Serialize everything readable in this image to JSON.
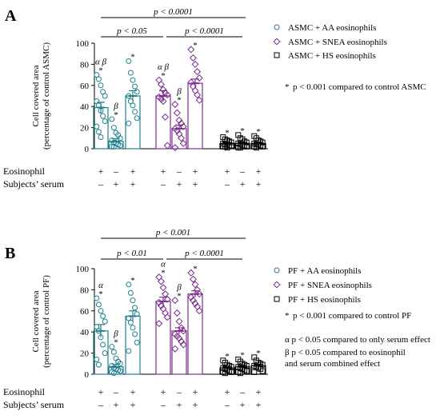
{
  "figure": {
    "colors": {
      "aa": "#1f7f8c",
      "snea": "#7b2d8e",
      "hs": "#000000"
    }
  },
  "chart_data": [
    {
      "panel": "A",
      "type": "bar",
      "ylabel_line1": "Cell covered area",
      "ylabel_line2": "(percentage of control ASMC)",
      "ylim": [
        0,
        100
      ],
      "yticks": [
        0,
        20,
        40,
        60,
        80,
        100
      ],
      "ytick_labels": [
        "0",
        "20",
        "40",
        "60",
        "80",
        "100"
      ],
      "grid": false,
      "legend_position": "right",
      "legend": [
        {
          "label": "ASMC + AA eosinophils",
          "marker": "circle",
          "color_key": "aa"
        },
        {
          "label": "ASMC + SNEA eosinophils",
          "marker": "diamond",
          "color_key": "snea"
        },
        {
          "label": "ASMC + HS eosinophils",
          "marker": "square",
          "color_key": "hs"
        }
      ],
      "footnote": "p < 0.001 compared to control ASMC",
      "condition_rows": [
        {
          "label": "Eosinophil",
          "values": [
            "+",
            "–",
            "+",
            "+",
            "–",
            "+",
            "+",
            "–",
            "+"
          ]
        },
        {
          "label": "Subjects’ serum",
          "values": [
            "–",
            "+",
            "+",
            "–",
            "+",
            "+",
            "–",
            "+",
            "+"
          ]
        }
      ],
      "series": [
        {
          "group": "AA",
          "color_key": "aa",
          "marker": "circle",
          "bars": [
            {
              "mean": 39,
              "sem": 5,
              "star": "*",
              "greek": "α β",
              "points": [
                70,
                66,
                60,
                54,
                50,
                45,
                41,
                36,
                31,
                26,
                21,
                16,
                11
              ]
            },
            {
              "mean": 7,
              "sem": 2.5,
              "star": "*",
              "greek": "β",
              "points": [
                28,
                20,
                15,
                13,
                10,
                8,
                6,
                5,
                4,
                3,
                2,
                2
              ]
            },
            {
              "mean": 50,
              "sem": 5,
              "star": "*",
              "greek": "",
              "points": [
                83,
                72,
                65,
                59,
                54,
                50,
                45,
                41,
                35,
                29,
                24
              ]
            }
          ]
        },
        {
          "group": "SNEA",
          "color_key": "snea",
          "marker": "diamond",
          "bars": [
            {
              "mean": 50,
              "sem": 5,
              "star": "*",
              "greek": "α β",
              "points": [
                65,
                61,
                56,
                53,
                51,
                49,
                47,
                45,
                30,
                3
              ]
            },
            {
              "mean": 19,
              "sem": 3.5,
              "star": "*",
              "greek": "β",
              "points": [
                42,
                34,
                27,
                24,
                21,
                19,
                17,
                14,
                10,
                5,
                1
              ]
            },
            {
              "mean": 62,
              "sem": 4,
              "star": "*",
              "greek": "",
              "points": [
                94,
                86,
                80,
                73,
                67,
                63,
                59,
                55,
                51,
                46
              ]
            }
          ]
        },
        {
          "group": "HS",
          "color_key": "hs",
          "marker": "square",
          "bars": [
            {
              "mean": 5,
              "sem": 1,
              "star": "*",
              "greek": "",
              "points": [
                11,
                9,
                8,
                7,
                6,
                5,
                4,
                4,
                3,
                3,
                2,
                2,
                1
              ]
            },
            {
              "mean": 5,
              "sem": 1,
              "star": "*",
              "greek": "",
              "points": [
                13,
                10,
                9,
                7,
                6,
                5,
                4,
                3,
                3,
                2,
                1,
                1
              ]
            },
            {
              "mean": 5,
              "sem": 1,
              "star": "*",
              "greek": "",
              "points": [
                12,
                10,
                8,
                7,
                6,
                5,
                4,
                4,
                3,
                2,
                2,
                1
              ]
            }
          ]
        }
      ],
      "significance": [
        {
          "label": "p < 0.0001",
          "from": 0,
          "to": 7
        },
        {
          "label": "p < 0.05",
          "from": 0,
          "to": 3
        },
        {
          "label": "p < 0.0001",
          "from": 3,
          "to": 7
        }
      ]
    },
    {
      "panel": "B",
      "type": "bar",
      "ylabel_line1": "Cell covered area",
      "ylabel_line2": "(percentage of control PF)",
      "ylim": [
        0,
        100
      ],
      "yticks": [
        0,
        20,
        40,
        60,
        80,
        100
      ],
      "ytick_labels": [
        "0",
        "20",
        "40",
        "60",
        "80",
        "100"
      ],
      "grid": false,
      "legend_position": "right",
      "legend": [
        {
          "label": "PF + AA eosinophils",
          "marker": "circle",
          "color_key": "aa"
        },
        {
          "label": "PF + SNEA eosinophils",
          "marker": "diamond",
          "color_key": "snea"
        },
        {
          "label": "PF + HS eosinophils",
          "marker": "square",
          "color_key": "hs"
        }
      ],
      "footnote": "p < 0.001 compared to control PF",
      "notes": [
        "α p < 0.05 compared to only serum effect",
        "β p < 0.05 compared to eosinophil",
        "and serum combined effect"
      ],
      "condition_rows": [
        {
          "label": "Eosinophil",
          "values": [
            "+",
            "–",
            "+",
            "+",
            "–",
            "+",
            "+",
            "–",
            "+"
          ]
        },
        {
          "label": "Subjects’ serum",
          "values": [
            "–",
            "+",
            "+",
            "–",
            "+",
            "+",
            "–",
            "+",
            "+"
          ]
        }
      ],
      "series": [
        {
          "group": "AA",
          "color_key": "aa",
          "marker": "circle",
          "bars": [
            {
              "mean": 41,
              "sem": 6,
              "star": "*",
              "greek": "α",
              "points": [
                72,
                66,
                60,
                55,
                50,
                45,
                41,
                35,
                28,
                20,
                14,
                9
              ]
            },
            {
              "mean": 7,
              "sem": 2.5,
              "star": "*",
              "greek": "β",
              "points": [
                26,
                21,
                15,
                12,
                10,
                8,
                6,
                5,
                4,
                3,
                2,
                1
              ]
            },
            {
              "mean": 55,
              "sem": 5,
              "star": "*",
              "greek": "",
              "points": [
                85,
                77,
                70,
                63,
                57,
                53,
                49,
                44,
                38,
                30,
                22
              ]
            }
          ]
        },
        {
          "group": "SNEA",
          "color_key": "snea",
          "marker": "diamond",
          "bars": [
            {
              "mean": 69,
              "sem": 4,
              "star": "*",
              "greek": "α",
              "points": [
                92,
                88,
                82,
                76,
                71,
                68,
                65,
                62,
                58,
                54,
                48
              ]
            },
            {
              "mean": 41,
              "sem": 3,
              "star": "*",
              "greek": "β",
              "points": [
                70,
                58,
                50,
                44,
                41,
                38,
                36,
                34,
                31,
                28,
                24
              ]
            },
            {
              "mean": 76,
              "sem": 3,
              "star": "*",
              "greek": "",
              "points": [
                96,
                90,
                85,
                80,
                76,
                73,
                70,
                67,
                64,
                60
              ]
            }
          ]
        },
        {
          "group": "HS",
          "color_key": "hs",
          "marker": "square",
          "bars": [
            {
              "mean": 6,
              "sem": 1.5,
              "star": "*",
              "greek": "",
              "points": [
                13,
                11,
                9,
                8,
                7,
                6,
                5,
                4,
                3,
                2,
                2,
                1
              ]
            },
            {
              "mean": 7,
              "sem": 1.5,
              "star": "*",
              "greek": "",
              "points": [
                14,
                12,
                10,
                9,
                8,
                7,
                6,
                5,
                4,
                3,
                2,
                1
              ]
            },
            {
              "mean": 8,
              "sem": 1.5,
              "star": "*",
              "greek": "",
              "points": [
                16,
                13,
                11,
                10,
                9,
                8,
                7,
                6,
                5,
                3,
                2
              ]
            }
          ]
        }
      ],
      "significance": [
        {
          "label": "p < 0.001",
          "from": 0,
          "to": 7
        },
        {
          "label": "p < 0.01",
          "from": 0,
          "to": 3
        },
        {
          "label": "p < 0.0001",
          "from": 3,
          "to": 7
        }
      ]
    }
  ]
}
